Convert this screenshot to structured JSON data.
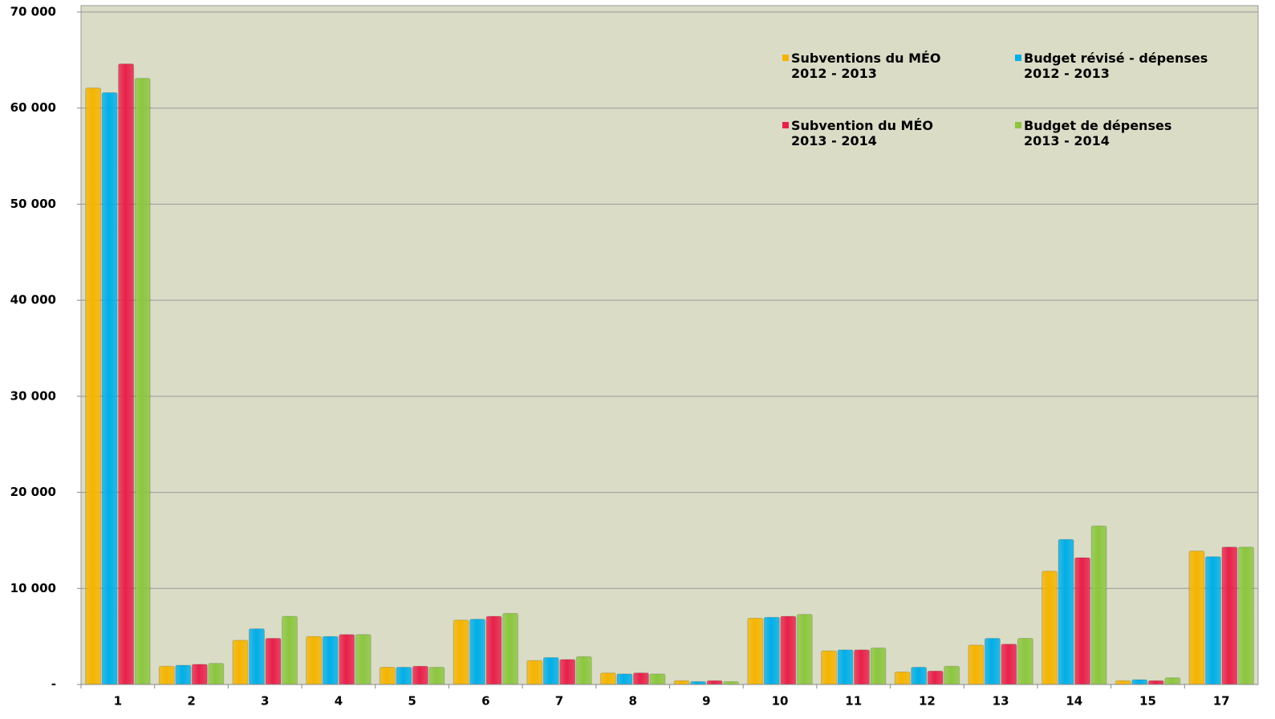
{
  "chart_data": {
    "type": "bar",
    "categories": [
      "1",
      "2",
      "3",
      "4",
      "5",
      "6",
      "7",
      "8",
      "9",
      "10",
      "11",
      "12",
      "13",
      "14",
      "15",
      "17"
    ],
    "series": [
      {
        "name": "Subventions du MÉO\n2012 - 2013",
        "color": "#f5b400",
        "values": [
          62100,
          1900,
          4600,
          5000,
          1800,
          6700,
          2500,
          1200,
          400,
          6900,
          3500,
          1300,
          4100,
          11800,
          400,
          13900
        ]
      },
      {
        "name": "Budget révisé - dépenses\n2012 - 2013",
        "color": "#00aee8",
        "values": [
          61600,
          2000,
          5800,
          5000,
          1800,
          6800,
          2800,
          1100,
          300,
          7000,
          3600,
          1800,
          4800,
          15100,
          500,
          13300
        ]
      },
      {
        "name": "Subvention du MÉO\n2013 - 2014",
        "color": "#e8204a",
        "values": [
          64600,
          2100,
          4800,
          5200,
          1900,
          7100,
          2600,
          1200,
          400,
          7100,
          3600,
          1400,
          4200,
          13200,
          400,
          14300
        ]
      },
      {
        "name": "Budget de dépenses\n2013 - 2014",
        "color": "#8cc63f",
        "values": [
          63100,
          2200,
          7100,
          5200,
          1800,
          7400,
          2900,
          1100,
          300,
          7300,
          3800,
          1900,
          4800,
          16500,
          700,
          14300
        ]
      }
    ],
    "ylim": [
      0,
      70000
    ],
    "yticks": [
      {
        "value": 0,
        "label": "-"
      },
      {
        "value": 10000,
        "label": "10 000"
      },
      {
        "value": 20000,
        "label": "20 000"
      },
      {
        "value": 30000,
        "label": "30 000"
      },
      {
        "value": 40000,
        "label": "40 000"
      },
      {
        "value": 50000,
        "label": "50 000"
      },
      {
        "value": 60000,
        "label": "60 000"
      },
      {
        "value": 70000,
        "label": "70 000"
      }
    ],
    "grid": true,
    "legend": "top-right"
  }
}
